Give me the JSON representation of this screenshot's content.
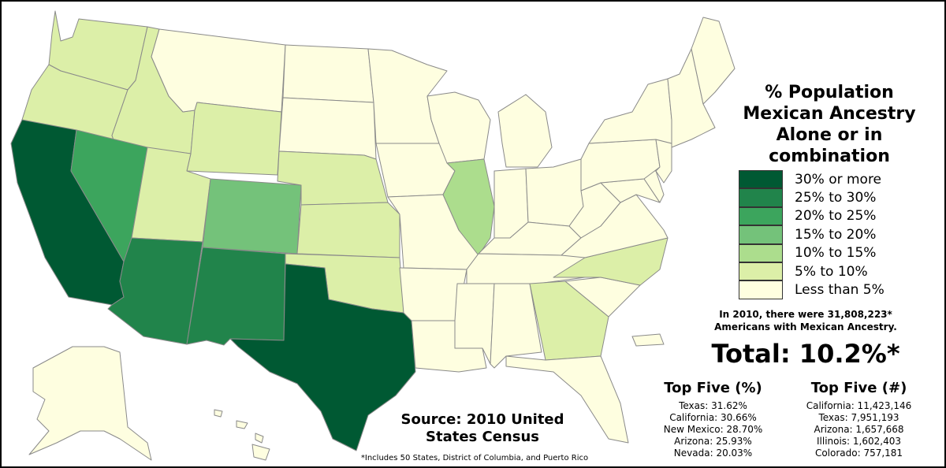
{
  "legend": {
    "title_lines": [
      "% Population",
      "Mexican Ancestry",
      "Alone or in",
      "combination"
    ],
    "items": [
      {
        "label": "30% or more",
        "color": "#005933"
      },
      {
        "label": "25% to 30%",
        "color": "#21844b"
      },
      {
        "label": "20% to 25%",
        "color": "#3ca55d"
      },
      {
        "label": "15% to 20%",
        "color": "#74c27a"
      },
      {
        "label": "10% to 15%",
        "color": "#acdd8d"
      },
      {
        "label": "5% to 10%",
        "color": "#dcefa8"
      },
      {
        "label": "Less than 5%",
        "color": "#fefee0"
      }
    ]
  },
  "note_lines": [
    "In 2010, there were 31,808,223*",
    "Americans with Mexican Ancestry."
  ],
  "total": "Total: 10.2%*",
  "top_five_pct": {
    "title": "Top Five (%)",
    "items": [
      "Texas: 31.62%",
      "California: 30.66%",
      "New Mexico: 28.70%",
      "Arizona: 25.93%",
      "Nevada: 20.03%"
    ]
  },
  "top_five_num": {
    "title": "Top Five (#)",
    "items": [
      "California: 11,423,146",
      "Texas: 7,951,193",
      "Arizona: 1,657,668",
      "Illinois: 1,602,403",
      "Colorado: 757,181"
    ]
  },
  "source_lines": [
    "Source: 2010 United",
    "States Census"
  ],
  "footnote": "*Includes 50 States, District of Columbia, and Puerto Rico",
  "map": {
    "state_categories": {
      "california": "30% or more",
      "texas": "30% or more",
      "arizona": "25% to 30%",
      "new-mexico": "25% to 30%",
      "nevada": "20% to 25%",
      "colorado": "15% to 20%",
      "illinois": "10% to 15%",
      "washington": "5% to 10%",
      "oregon": "5% to 10%",
      "idaho": "5% to 10%",
      "wyoming": "5% to 10%",
      "utah": "5% to 10%",
      "nebraska": "5% to 10%",
      "kansas": "5% to 10%",
      "oklahoma": "5% to 10%",
      "georgia": "5% to 10%",
      "north-carolina": "5% to 10%",
      "montana": "Less than 5%",
      "north-dakota": "Less than 5%",
      "south-dakota": "Less than 5%",
      "minnesota": "Less than 5%",
      "iowa": "Less than 5%",
      "missouri": "Less than 5%",
      "arkansas": "Less than 5%",
      "louisiana": "Less than 5%",
      "wisconsin": "Less than 5%",
      "michigan": "Less than 5%",
      "indiana": "Less than 5%",
      "ohio": "Less than 5%",
      "kentucky": "Less than 5%",
      "tennessee": "Less than 5%",
      "mississippi": "Less than 5%",
      "alabama": "Less than 5%",
      "florida": "Less than 5%",
      "south-carolina": "Less than 5%",
      "virginia": "Less than 5%",
      "west-virginia": "Less than 5%",
      "pennsylvania": "Less than 5%",
      "new-york": "Less than 5%",
      "new-jersey": "Less than 5%",
      "maryland": "Less than 5%",
      "delaware": "Less than 5%",
      "new-england": "Less than 5%",
      "maine": "Less than 5%",
      "alaska": "Less than 5%",
      "hawaii": "Less than 5%",
      "puerto-rico": "Less than 5%"
    }
  }
}
